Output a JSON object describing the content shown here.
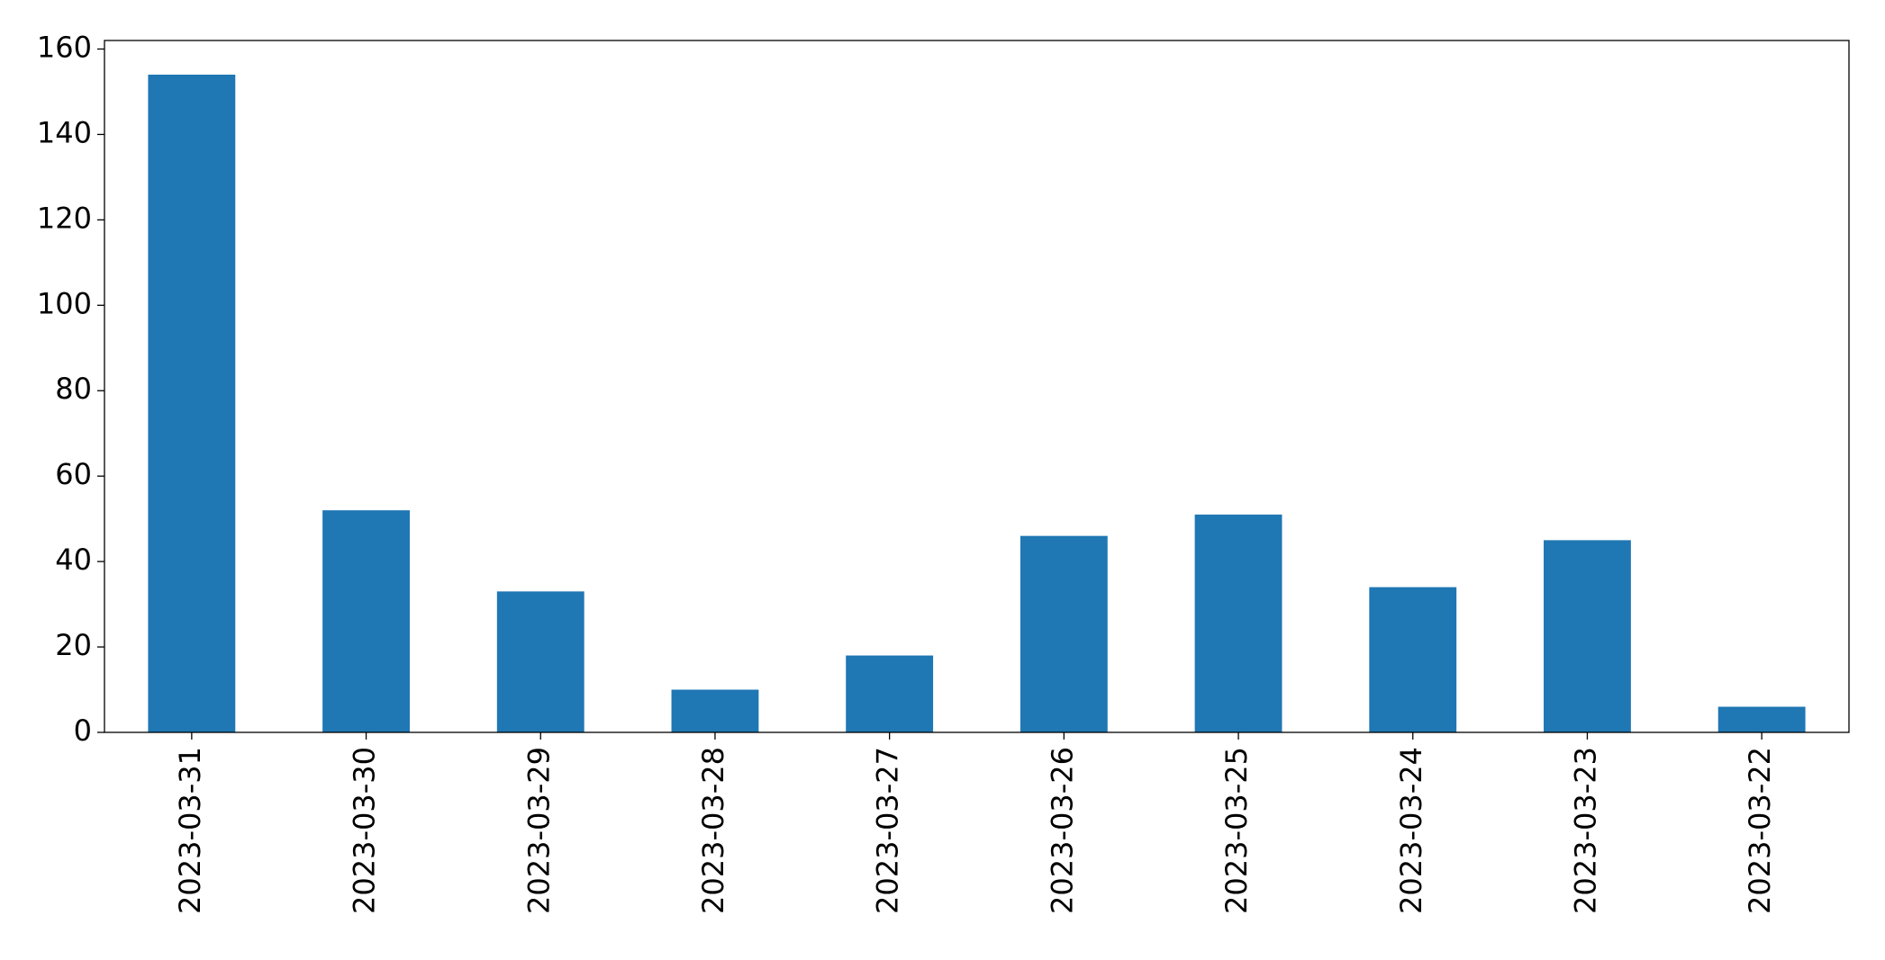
{
  "chart_data": {
    "type": "bar",
    "categories": [
      "2023-03-31",
      "2023-03-30",
      "2023-03-29",
      "2023-03-28",
      "2023-03-27",
      "2023-03-26",
      "2023-03-25",
      "2023-03-24",
      "2023-03-23",
      "2023-03-22"
    ],
    "values": [
      154,
      52,
      33,
      10,
      18,
      46,
      51,
      34,
      45,
      6
    ],
    "color": "#1f77b4",
    "ylim": [
      0,
      162
    ],
    "yticks": [
      0,
      20,
      40,
      60,
      80,
      100,
      120,
      140,
      160
    ],
    "grid": false
  }
}
